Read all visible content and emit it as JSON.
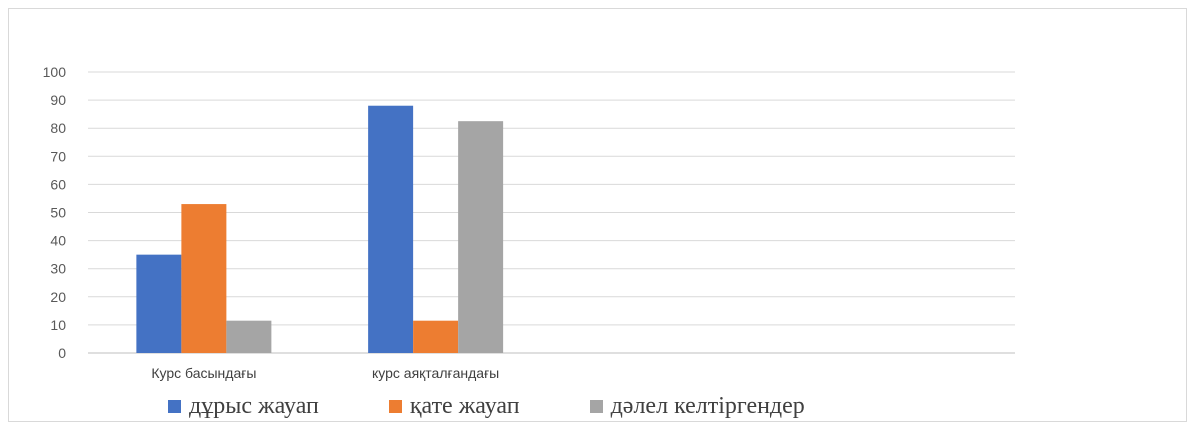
{
  "chart_data": {
    "type": "bar",
    "title": "",
    "xlabel": "",
    "ylabel": "",
    "ylim": [
      0,
      100
    ],
    "yticks": [
      0,
      10,
      20,
      30,
      40,
      50,
      60,
      70,
      80,
      90,
      100
    ],
    "grid": true,
    "legend_position": "bottom",
    "categories": [
      "Курс басындағы",
      "курс аяқталғандағы",
      "",
      ""
    ],
    "series": [
      {
        "name": "дұрыс жауап",
        "color": "#4472c4",
        "values": [
          35,
          88,
          null,
          null
        ]
      },
      {
        "name": "қате жауап",
        "color": "#ed7d31",
        "values": [
          53,
          11.5,
          null,
          null
        ]
      },
      {
        "name": "дәлел келтіргендер",
        "color": "#a5a5a5",
        "values": [
          11.5,
          82.5,
          null,
          null
        ]
      }
    ]
  }
}
